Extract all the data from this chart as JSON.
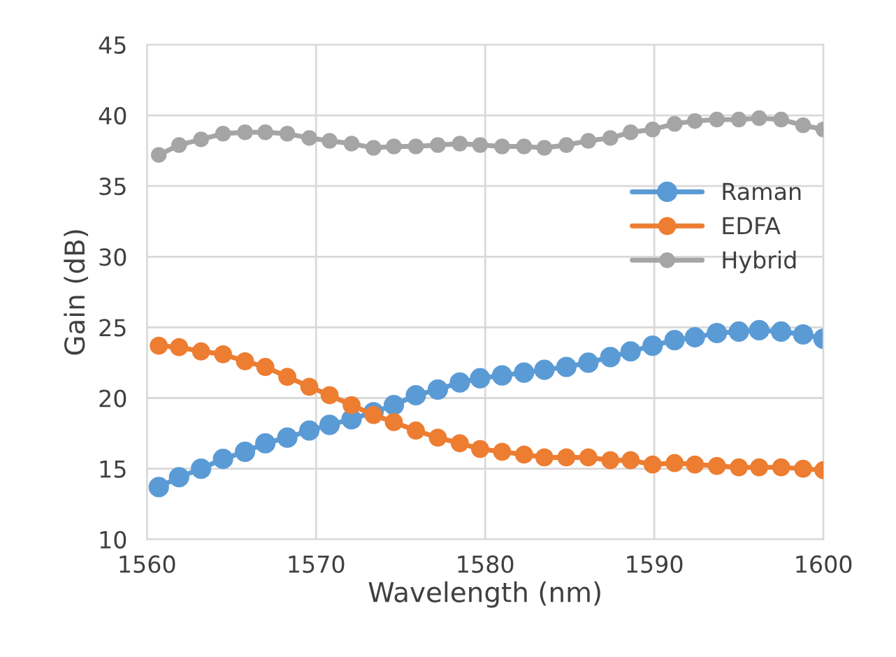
{
  "chart_data": {
    "type": "line",
    "xlabel": "Wavelength (nm)",
    "ylabel": "Gain (dB)",
    "x": [
      1560.7,
      1561.9,
      1563.2,
      1564.5,
      1565.8,
      1567.0,
      1568.3,
      1569.6,
      1570.8,
      1572.1,
      1573.4,
      1574.6,
      1575.9,
      1577.2,
      1578.5,
      1579.7,
      1581.0,
      1582.3,
      1583.5,
      1584.8,
      1586.1,
      1587.4,
      1588.6,
      1589.9,
      1591.2,
      1592.4,
      1593.7,
      1595.0,
      1596.2,
      1597.5,
      1598.8,
      1600.0
    ],
    "series": [
      {
        "name": "Raman",
        "color": "#5b9bd5",
        "values": [
          13.7,
          14.4,
          15.0,
          15.7,
          16.2,
          16.8,
          17.2,
          17.7,
          18.1,
          18.5,
          19.0,
          19.5,
          20.2,
          20.6,
          21.1,
          21.4,
          21.6,
          21.8,
          22.0,
          22.2,
          22.5,
          22.9,
          23.3,
          23.7,
          24.1,
          24.3,
          24.6,
          24.7,
          24.8,
          24.7,
          24.5,
          24.2
        ]
      },
      {
        "name": "EDFA",
        "color": "#ed7d31",
        "values": [
          23.7,
          23.6,
          23.3,
          23.1,
          22.6,
          22.2,
          21.5,
          20.8,
          20.2,
          19.5,
          18.8,
          18.3,
          17.7,
          17.2,
          16.8,
          16.4,
          16.2,
          16.0,
          15.8,
          15.8,
          15.8,
          15.6,
          15.6,
          15.3,
          15.4,
          15.3,
          15.2,
          15.1,
          15.1,
          15.1,
          15.0,
          14.9
        ]
      },
      {
        "name": "Hybrid",
        "color": "#a5a5a5",
        "values": [
          37.2,
          37.9,
          38.3,
          38.7,
          38.8,
          38.8,
          38.7,
          38.4,
          38.2,
          38.0,
          37.7,
          37.8,
          37.8,
          37.9,
          38.0,
          37.9,
          37.8,
          37.8,
          37.7,
          37.9,
          38.2,
          38.4,
          38.8,
          39.0,
          39.4,
          39.6,
          39.7,
          39.7,
          39.8,
          39.7,
          39.3,
          39.0
        ]
      }
    ],
    "xlim": [
      1560,
      1600
    ],
    "xticks": [
      1560,
      1570,
      1580,
      1590,
      1600
    ],
    "ylim": [
      10,
      45
    ],
    "yticks": [
      10,
      15,
      20,
      25,
      30,
      35,
      40,
      45
    ],
    "grid": true,
    "legend": "center right",
    "marker": "circle",
    "line_style": "solid"
  }
}
